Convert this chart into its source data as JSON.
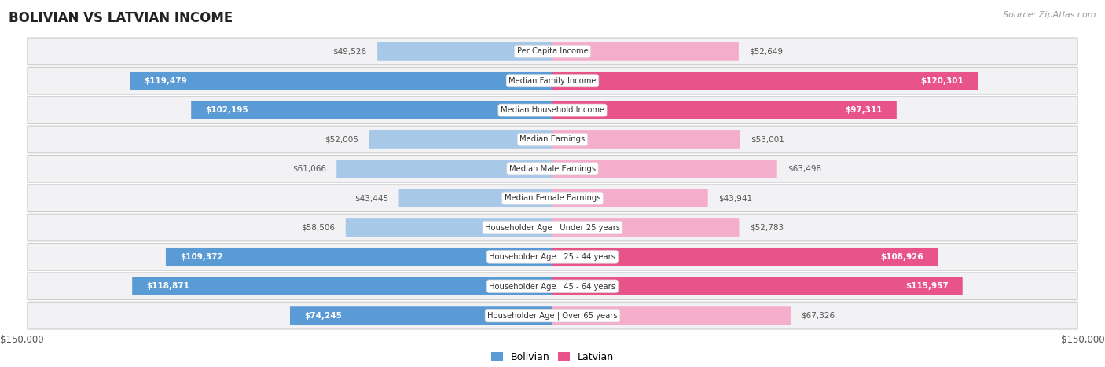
{
  "title": "BOLIVIAN VS LATVIAN INCOME",
  "source": "Source: ZipAtlas.com",
  "categories": [
    "Per Capita Income",
    "Median Family Income",
    "Median Household Income",
    "Median Earnings",
    "Median Male Earnings",
    "Median Female Earnings",
    "Householder Age | Under 25 years",
    "Householder Age | 25 - 44 years",
    "Householder Age | 45 - 64 years",
    "Householder Age | Over 65 years"
  ],
  "bolivian": [
    49526,
    119479,
    102195,
    52005,
    61066,
    43445,
    58506,
    109372,
    118871,
    74245
  ],
  "latvian": [
    52649,
    120301,
    97311,
    53001,
    63498,
    43941,
    52783,
    108926,
    115957,
    67326
  ],
  "bolivian_color_light": "#A8C8E8",
  "bolivian_color_dark": "#5B9BD5",
  "latvian_color_light": "#F4AECB",
  "latvian_color_dark": "#E8538A",
  "max_value": 150000,
  "bg_color": "#FFFFFF",
  "row_bg_color": "#F2F2F5",
  "threshold_dark": 70000,
  "label_threshold": 70000
}
